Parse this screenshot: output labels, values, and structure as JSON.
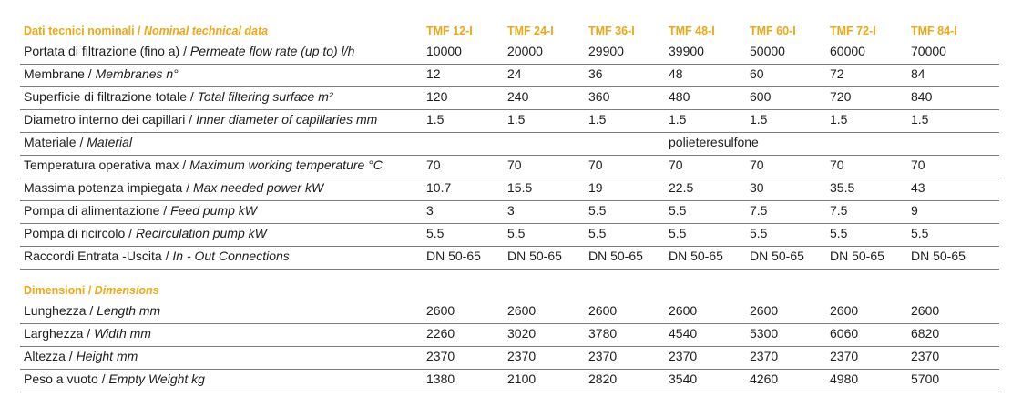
{
  "header": {
    "label_it": "Dati tecnici nominali / ",
    "label_en": "Nominal technical data",
    "models": [
      "TMF 12-I",
      "TMF 24-I",
      "TMF 36-I",
      "TMF 48-I",
      "TMF 60-I",
      "TMF 72-I",
      "TMF 84-I"
    ]
  },
  "technical_rows": [
    {
      "it": "Portata di filtrazione (fino a) / ",
      "en": "Permeate flow rate (up to) l/h",
      "values": [
        "10000",
        "20000",
        "29900",
        "39900",
        "50000",
        "60000",
        "70000"
      ]
    },
    {
      "it": "Membrane / ",
      "en": "Membranes n°",
      "values": [
        "12",
        "24",
        "36",
        "48",
        "60",
        "72",
        "84"
      ]
    },
    {
      "it": "Superficie di filtrazione totale / ",
      "en": "Total filtering surface m²",
      "values": [
        "120",
        "240",
        "360",
        "480",
        "600",
        "720",
        "840"
      ]
    },
    {
      "it": "Diametro interno dei capillari / ",
      "en": "Inner diameter of capillaries mm",
      "values": [
        "1.5",
        "1.5",
        "1.5",
        "1.5",
        "1.5",
        "1.5",
        "1.5"
      ]
    },
    {
      "it": "Materiale / ",
      "en": "Material",
      "span_value": "polieteresulfone"
    },
    {
      "it": "Temperatura operativa max / ",
      "en": "Maximum working temperature °C",
      "values": [
        "70",
        "70",
        "70",
        "70",
        "70",
        "70",
        "70"
      ]
    },
    {
      "it": "Massima potenza impiegata / ",
      "en": "Max needed power kW",
      "values": [
        "10.7",
        "15.5",
        "19",
        "22.5",
        "30",
        "35.5",
        "43"
      ]
    },
    {
      "it": "Pompa di alimentazione / ",
      "en": "Feed pump kW",
      "values": [
        "3",
        "3",
        "5.5",
        "5.5",
        "7.5",
        "7.5",
        "9"
      ]
    },
    {
      "it": "Pompa di ricircolo / ",
      "en": "Recirculation pump kW",
      "values": [
        "5.5",
        "5.5",
        "5.5",
        "5.5",
        "5.5",
        "5.5",
        "5.5"
      ]
    },
    {
      "it": "Raccordi Entrata -Uscita / ",
      "en": "In - Out Connections",
      "values": [
        "DN 50-65",
        "DN 50-65",
        "DN 50-65",
        "DN 50-65",
        "DN 50-65",
        "DN 50-65",
        "DN 50-65"
      ]
    }
  ],
  "dimensions_header": {
    "label_it": "Dimensioni / ",
    "label_en": "Dimensions"
  },
  "dimension_rows": [
    {
      "it": "Lunghezza / ",
      "en": "Length mm",
      "values": [
        "2600",
        "2600",
        "2600",
        "2600",
        "2600",
        "2600",
        "2600"
      ]
    },
    {
      "it": "Larghezza / ",
      "en": "Width mm",
      "values": [
        "2260",
        "3020",
        "3780",
        "4540",
        "5300",
        "6060",
        "6820"
      ]
    },
    {
      "it": "Altezza / ",
      "en": "Height mm",
      "values": [
        "2370",
        "2370",
        "2370",
        "2370",
        "2370",
        "2370",
        "2370"
      ]
    },
    {
      "it": "Peso a vuoto / ",
      "en": "Empty Weight kg",
      "values": [
        "1380",
        "2100",
        "2820",
        "3540",
        "4260",
        "4980",
        "5700"
      ]
    }
  ],
  "colors": {
    "accent": "#f0a712",
    "text": "#1d1d1b",
    "rule": "#7d7d7d"
  }
}
